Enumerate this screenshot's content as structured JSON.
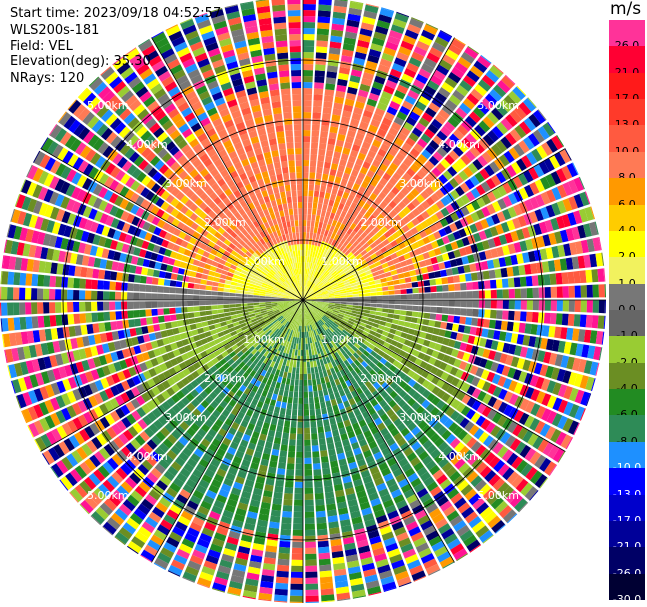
{
  "header": {
    "start_time": "Start time: 2023/09/18 04:52:57",
    "instrument": "WLS200s-181",
    "field": "Field: VEL",
    "elevation": "Elevation(deg): 35.30",
    "nrays": "NRays: 120"
  },
  "colorbar": {
    "units": "m/s",
    "bins": [
      {
        "label": "26.0",
        "color": "#ff3399"
      },
      {
        "label": "21.0",
        "color": "#ff0033"
      },
      {
        "label": "17.0",
        "color": "#ff1a1a"
      },
      {
        "label": "13.0",
        "color": "#ff3a2a"
      },
      {
        "label": "10.0",
        "color": "#ff5a40"
      },
      {
        "label": "8.0",
        "color": "#ff7a55"
      },
      {
        "label": "6.0",
        "color": "#ff9900"
      },
      {
        "label": "4.0",
        "color": "#ffcc00"
      },
      {
        "label": "2.0",
        "color": "#ffff00"
      },
      {
        "label": "1.0",
        "color": "#f2f25e"
      },
      {
        "label": "0.0",
        "color": "#777777"
      },
      {
        "label": "-1.0",
        "color": "#666666"
      },
      {
        "label": "-2.0",
        "color": "#99cc33"
      },
      {
        "label": "-4.0",
        "color": "#6b8e23"
      },
      {
        "label": "-6.0",
        "color": "#228b22"
      },
      {
        "label": "-8.0",
        "color": "#2e8b57"
      },
      {
        "label": "-10.0",
        "color": "#1e90ff"
      },
      {
        "label": "-13.0",
        "color": "#0000ff"
      },
      {
        "label": "-17.0",
        "color": "#0000cc"
      },
      {
        "label": "-21.0",
        "color": "#000099"
      },
      {
        "label": "-26.0",
        "color": "#000066"
      },
      {
        "label": "-30.0",
        "color": "#000033"
      }
    ]
  },
  "ppi": {
    "range_rings_km": [
      1,
      2,
      3,
      4,
      5
    ],
    "ring_labels": [
      "1.00km",
      "2.00km",
      "3.00km",
      "4.00km",
      "5.00km"
    ],
    "noise_palette": [
      "#ff3399",
      "#ff0033",
      "#ff5a40",
      "#ff9900",
      "#ffff00",
      "#777777",
      "#99cc33",
      "#228b22",
      "#1e90ff",
      "#0000ff",
      "#000066",
      "#ff1493",
      "#ff7a55",
      "#2e8b57",
      "#000099",
      "#6b8e23"
    ]
  }
}
